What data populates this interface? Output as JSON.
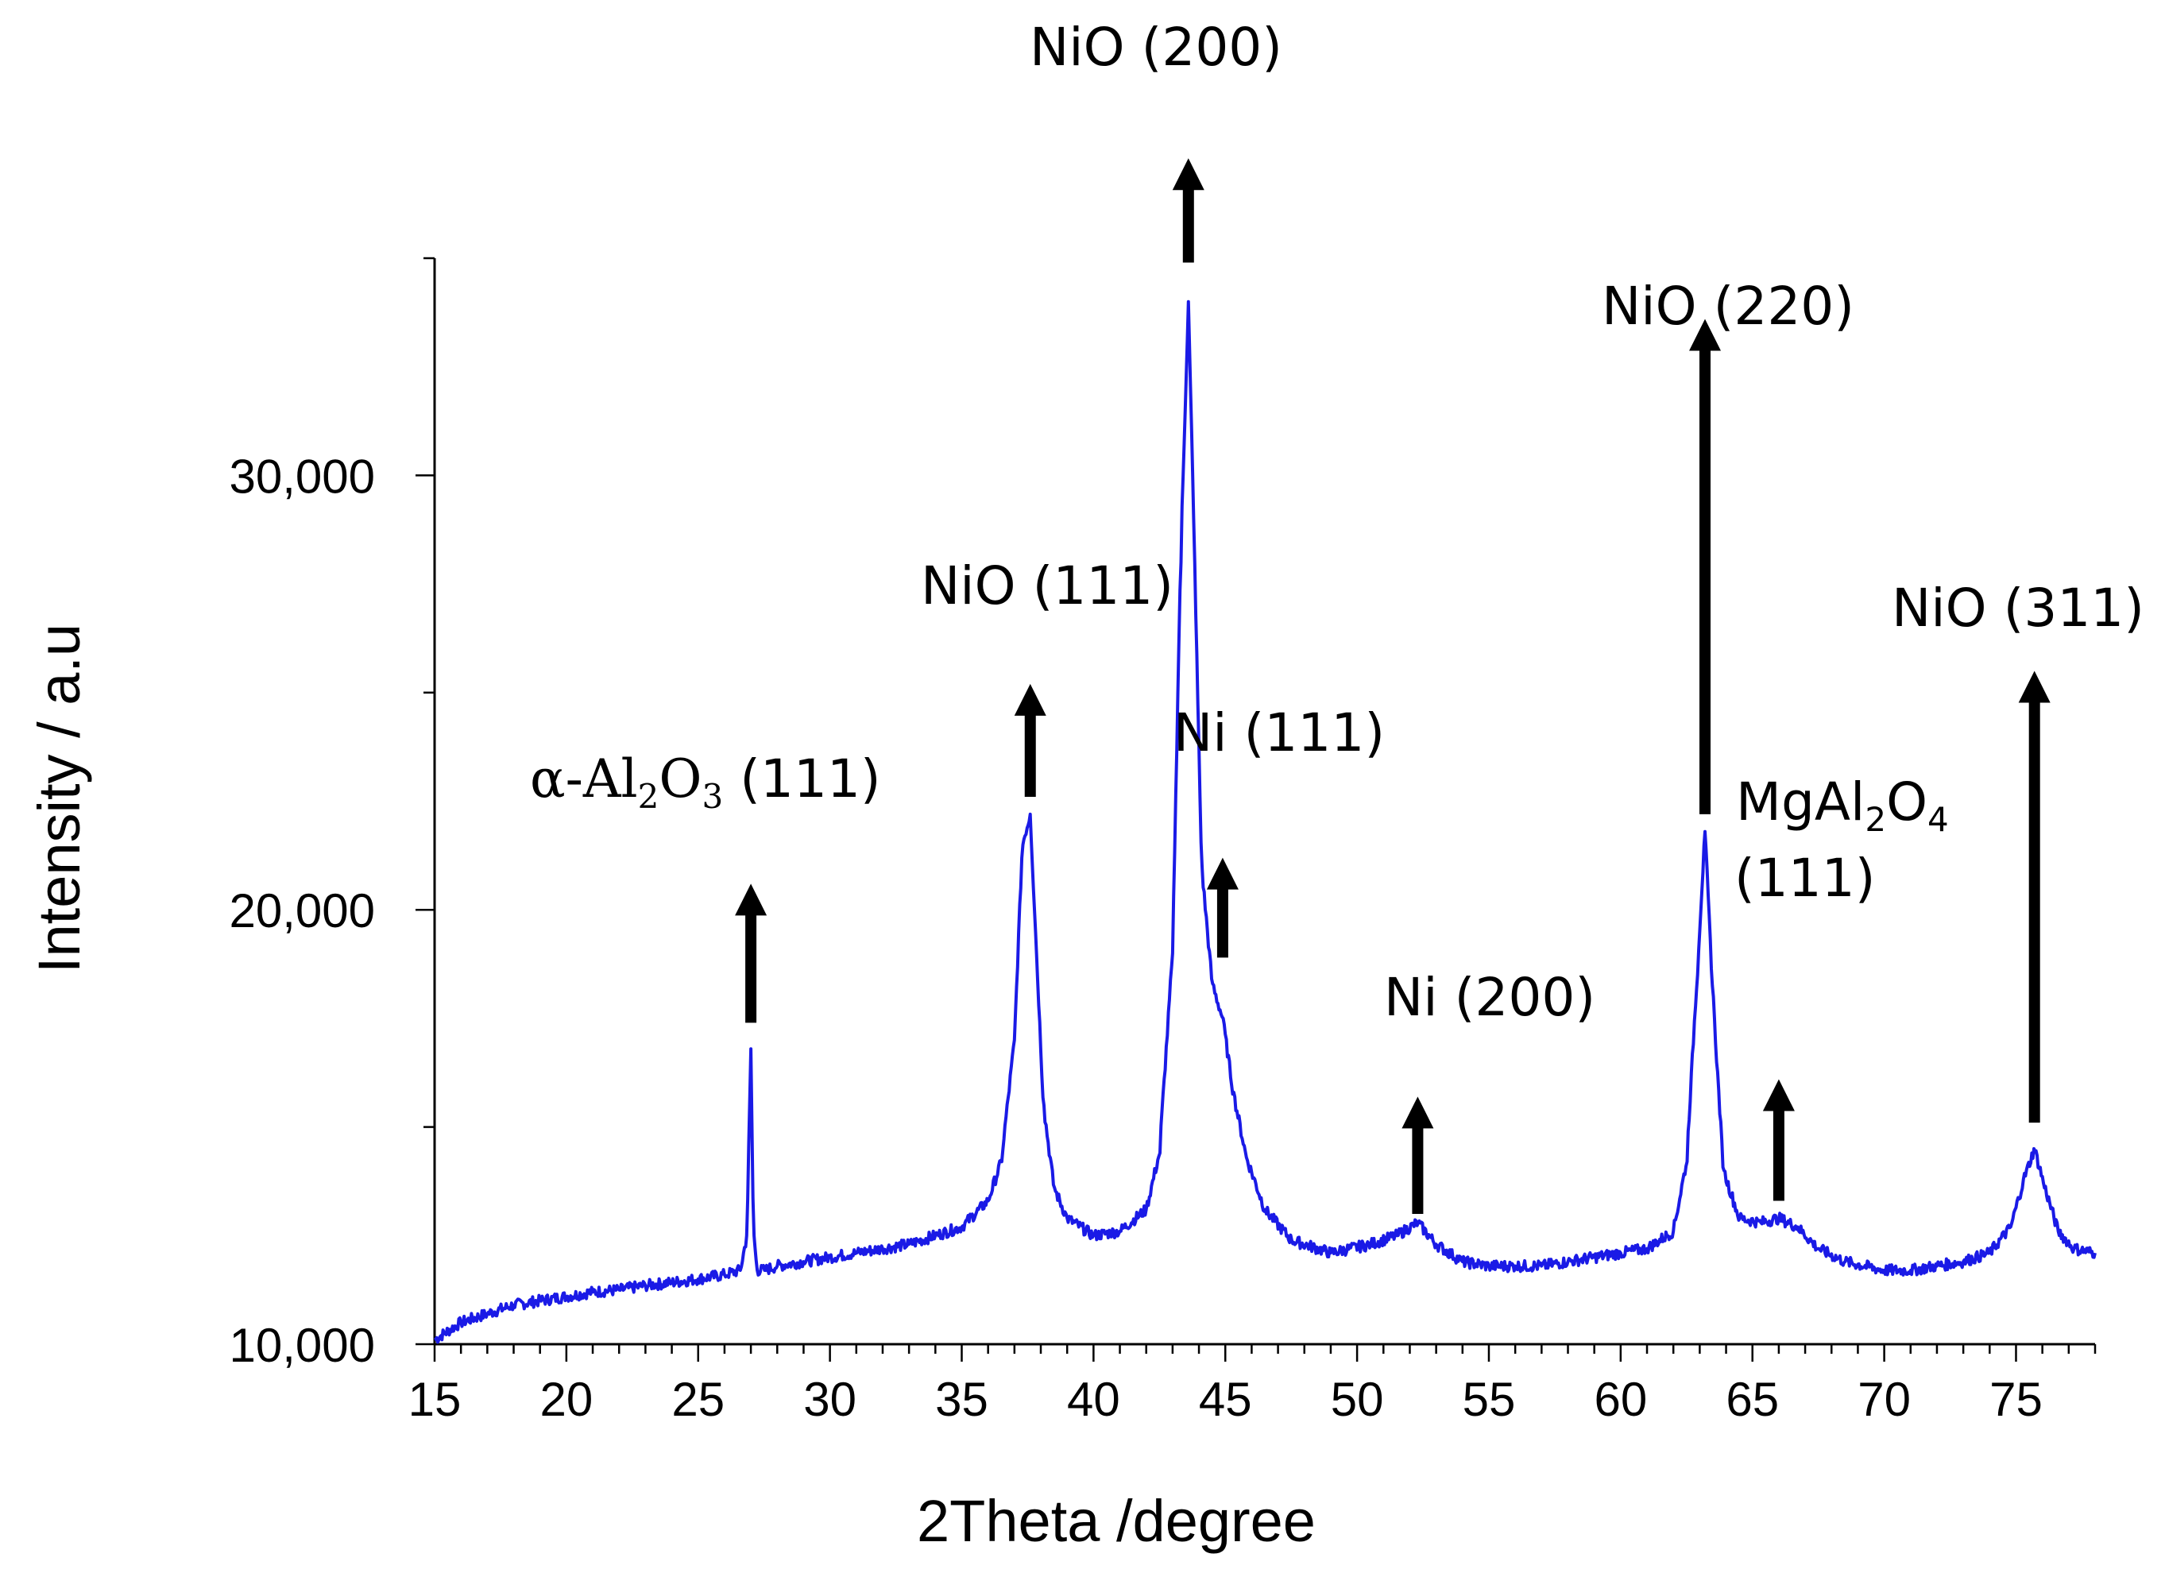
{
  "chart_data": {
    "type": "line",
    "title": "",
    "xlabel": "2Theta /degree",
    "ylabel": "Intensity / a.u",
    "xlim": [
      15,
      78
    ],
    "ylim": [
      10000,
      35000
    ],
    "x_ticks": [
      15,
      20,
      25,
      30,
      35,
      40,
      45,
      50,
      55,
      60,
      65,
      70,
      75
    ],
    "x_tick_labels": [
      "15",
      "20",
      "25",
      "30",
      "35",
      "40",
      "45",
      "50",
      "55",
      "60",
      "65",
      "70",
      "75"
    ],
    "y_ticks": [
      10000,
      20000,
      30000
    ],
    "y_tick_labels": [
      "10,000",
      "20,000",
      "30,000"
    ],
    "grid": false,
    "series_color": "#1a1ae6",
    "series": [
      {
        "x": [
          15,
          16,
          17,
          18,
          19,
          20,
          21,
          22,
          23,
          24,
          25,
          26,
          26.6,
          26.85,
          27.0,
          27.1,
          27.25,
          27.5,
          28,
          29,
          30,
          31,
          32,
          33,
          34,
          35,
          36,
          36.5,
          37.0,
          37.3,
          37.6,
          37.8,
          38.1,
          38.5,
          39,
          40,
          41,
          42,
          42.5,
          43.0,
          43.3,
          43.6,
          43.8,
          44.1,
          44.5,
          44.9,
          45.3,
          45.8,
          46.5,
          47.5,
          49,
          50.5,
          51.5,
          52.3,
          53,
          54,
          55,
          56,
          57,
          58,
          59,
          60,
          61,
          62,
          62.5,
          62.9,
          63.2,
          63.5,
          63.9,
          64.5,
          65.3,
          66.0,
          66.7,
          67.5,
          68.5,
          70,
          71,
          72,
          73,
          74,
          74.8,
          75.3,
          75.7,
          76.1,
          76.6,
          77.2,
          78
        ],
        "y": [
          10100,
          10500,
          10700,
          10900,
          11000,
          11100,
          11200,
          11250,
          11350,
          11420,
          11500,
          11600,
          11700,
          12500,
          16800,
          12500,
          11700,
          11700,
          11800,
          11900,
          12000,
          12100,
          12200,
          12300,
          12500,
          12700,
          13300,
          14200,
          17000,
          21500,
          22200,
          19500,
          15500,
          13600,
          12900,
          12500,
          12600,
          13100,
          14400,
          19000,
          28000,
          34000,
          29000,
          21000,
          18300,
          17500,
          15800,
          14300,
          13100,
          12400,
          12100,
          12300,
          12500,
          12800,
          12300,
          11900,
          11800,
          11800,
          11800,
          11900,
          12000,
          12100,
          12200,
          12600,
          14200,
          18500,
          21800,
          18000,
          14000,
          12900,
          12800,
          12900,
          12700,
          12200,
          11900,
          11700,
          11700,
          11800,
          11900,
          12100,
          12700,
          13800,
          14500,
          13600,
          12600,
          12200,
          12100
        ]
      }
    ],
    "annotations": [
      {
        "label": "NiO (200)",
        "peak_x": 43.6
      },
      {
        "label": "NiO (111)",
        "peak_x": 37.6
      },
      {
        "label": "Ni (111)",
        "peak_x": 44.9
      },
      {
        "label_prefix": "α-Al",
        "sub1": "2",
        "mid": "O",
        "sub2": "3",
        "suffix": " (111)",
        "peak_x": 27.0
      },
      {
        "label": "Ni (200)",
        "peak_x": 52.3
      },
      {
        "label": "NiO (220)",
        "peak_x": 63.2
      },
      {
        "label_prefix": "MgAl",
        "sub1": "2",
        "mid": "O",
        "sub2": "4",
        "line2": "(111)",
        "peak_x": 66.0
      },
      {
        "label": "NiO (311)",
        "peak_x": 75.7
      }
    ]
  }
}
